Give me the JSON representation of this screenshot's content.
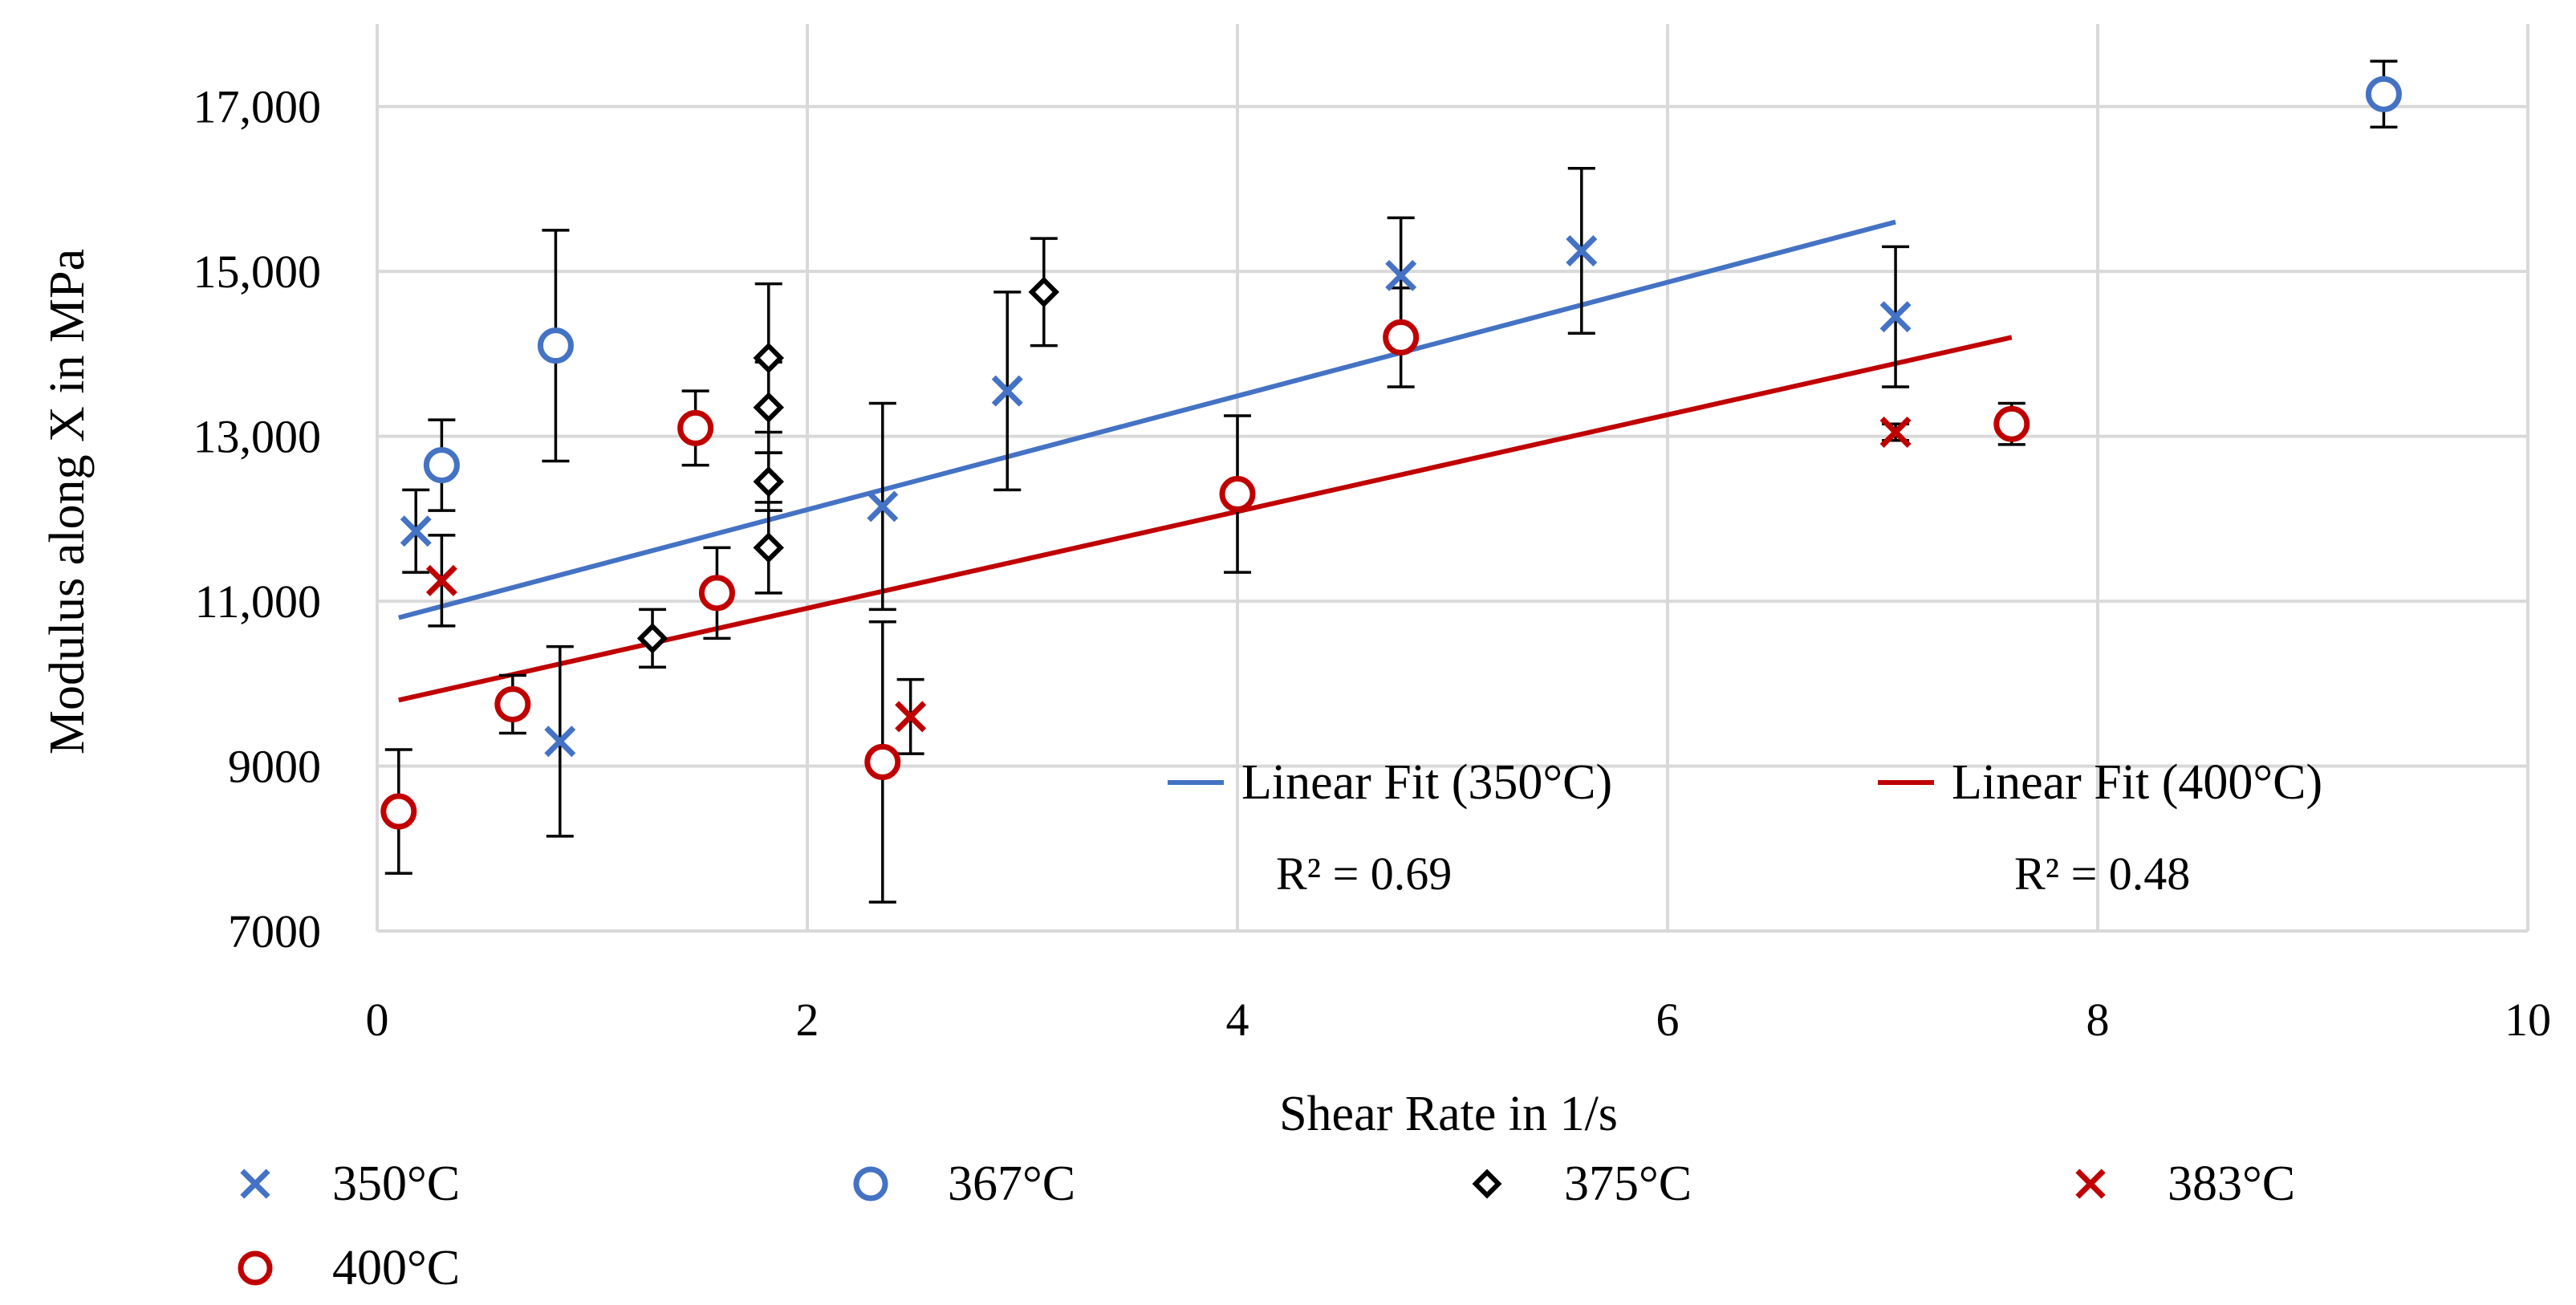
{
  "chart_data": {
    "type": "scatter",
    "title": "",
    "xlabel": "Shear Rate in 1/s",
    "ylabel": "Modulus along X in MPa",
    "xlim": [
      0,
      10
    ],
    "ylim": [
      7000,
      18000
    ],
    "x_ticks": [
      0,
      2,
      4,
      6,
      8,
      10
    ],
    "x_tick_labels": [
      "0",
      "2",
      "4",
      "6",
      "8",
      "10"
    ],
    "y_ticks": [
      7000,
      9000,
      11000,
      13000,
      15000,
      17000
    ],
    "y_tick_labels": [
      "7000",
      "9000",
      "11,000",
      "13,000",
      "15,000",
      "17,000"
    ],
    "grid": true,
    "legend_position": "bottom",
    "series": [
      {
        "name": "350°C",
        "marker": "x",
        "color": "#4472C4",
        "points": [
          {
            "x": 0.18,
            "y": 11850,
            "err": 500
          },
          {
            "x": 0.85,
            "y": 9300,
            "err": 1150
          },
          {
            "x": 2.35,
            "y": 12150,
            "err": 1250
          },
          {
            "x": 2.93,
            "y": 13550,
            "err": 1200
          },
          {
            "x": 4.76,
            "y": 14950,
            "err": 700
          },
          {
            "x": 5.6,
            "y": 15250,
            "err": 1000
          },
          {
            "x": 7.06,
            "y": 14450,
            "err": 850
          }
        ]
      },
      {
        "name": "367°C",
        "marker": "circle",
        "color": "#4472C4",
        "points": [
          {
            "x": 0.3,
            "y": 12650,
            "err": 550
          },
          {
            "x": 0.83,
            "y": 14100,
            "err": 1400
          },
          {
            "x": 9.33,
            "y": 17150,
            "err": 400
          }
        ]
      },
      {
        "name": "375°C",
        "marker": "diamond",
        "color": "#000000",
        "points": [
          {
            "x": 1.28,
            "y": 10550,
            "err": 350
          },
          {
            "x": 1.82,
            "y": 11650,
            "err": 550
          },
          {
            "x": 1.82,
            "y": 12450,
            "err": 350
          },
          {
            "x": 1.82,
            "y": 13350,
            "err": 550
          },
          {
            "x": 1.82,
            "y": 13950,
            "err": 900
          },
          {
            "x": 3.1,
            "y": 14750,
            "err": 650
          }
        ]
      },
      {
        "name": "383°C",
        "marker": "x",
        "color": "#C00000",
        "points": [
          {
            "x": 0.3,
            "y": 11250,
            "err": 550
          },
          {
            "x": 2.48,
            "y": 9600,
            "err": 450
          },
          {
            "x": 7.06,
            "y": 13050,
            "err": 100
          }
        ]
      },
      {
        "name": "400°C",
        "marker": "circle",
        "color": "#C00000",
        "points": [
          {
            "x": 0.1,
            "y": 8450,
            "err": 750
          },
          {
            "x": 0.63,
            "y": 9750,
            "err": 350
          },
          {
            "x": 1.48,
            "y": 13100,
            "err": 450
          },
          {
            "x": 1.58,
            "y": 11100,
            "err": 550
          },
          {
            "x": 2.35,
            "y": 9050,
            "err": 1700
          },
          {
            "x": 4.0,
            "y": 12300,
            "err": 950
          },
          {
            "x": 4.76,
            "y": 14200,
            "err": 600
          },
          {
            "x": 7.6,
            "y": 13150,
            "err": 250
          }
        ]
      }
    ],
    "fits": [
      {
        "name": "Linear Fit (350°C)",
        "color": "#4472C4",
        "x": [
          0.1,
          7.06
        ],
        "y": [
          10800,
          15600
        ],
        "r2_label": "R² = 0.69"
      },
      {
        "name": "Linear Fit (400°C)",
        "color": "#C00000",
        "x": [
          0.1,
          7.6
        ],
        "y": [
          9800,
          14200
        ],
        "r2_label": "R² = 0.48"
      }
    ]
  }
}
